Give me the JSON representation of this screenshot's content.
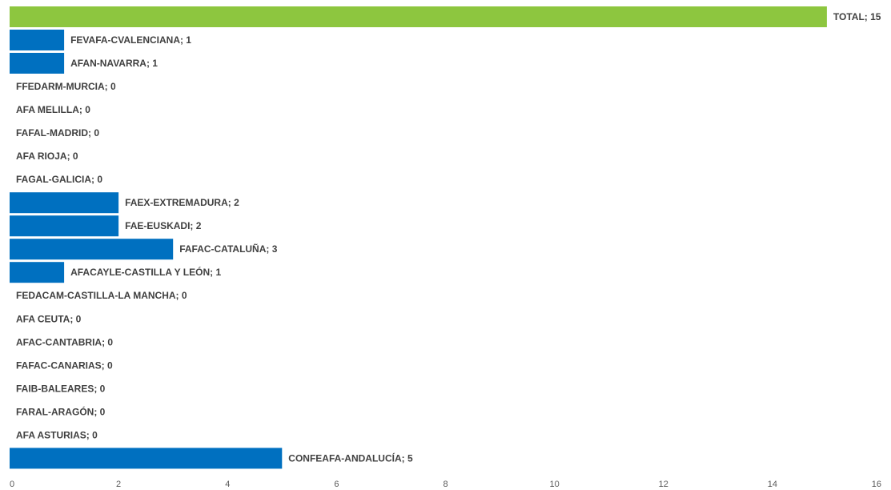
{
  "chart_data": {
    "type": "bar",
    "orientation": "horizontal",
    "categories": [
      "TOTAL",
      "FEVAFA-CVALENCIANA",
      "AFAN-NAVARRA",
      "FFEDARM-MURCIA",
      "AFA MELILLA",
      "FAFAL-MADRID",
      "AFA RIOJA",
      "FAGAL-GALICIA",
      "FAEX-EXTREMADURA",
      "FAE-EUSKADI",
      "FAFAC-CATALUÑA",
      "AFACAYLE-CASTILLA Y LEÓN",
      "FEDACAM-CASTILLA-LA MANCHA",
      "AFA CEUTA",
      "AFAC-CANTABRIA",
      "FAFAC-CANARIAS",
      "FAIB-BALEARES",
      "FARAL-ARAGÓN",
      "AFA ASTURIAS",
      "CONFEAFA-ANDALUCÍA"
    ],
    "values": [
      15,
      1,
      1,
      0,
      0,
      0,
      0,
      0,
      2,
      2,
      3,
      1,
      0,
      0,
      0,
      0,
      0,
      0,
      0,
      5
    ],
    "data_labels": [
      "TOTAL; 15",
      "FEVAFA-CVALENCIANA; 1",
      "AFAN-NAVARRA; 1",
      "FFEDARM-MURCIA; 0",
      "AFA MELILLA; 0",
      "FAFAL-MADRID; 0",
      "AFA RIOJA; 0",
      "FAGAL-GALICIA; 0",
      "FAEX-EXTREMADURA; 2",
      "FAE-EUSKADI; 2",
      "FAFAC-CATALUÑA; 3",
      "AFACAYLE-CASTILLA Y LEÓN; 1",
      "FEDACAM-CASTILLA-LA MANCHA; 0",
      "AFA CEUTA; 0",
      "AFAC-CANTABRIA; 0",
      "FAFAC-CANARIAS; 0",
      "FAIB-BALEARES; 0",
      "FARAL-ARAGÓN; 0",
      "AFA ASTURIAS; 0",
      "CONFEAFA-ANDALUCÍA; 5"
    ],
    "xlim": [
      0,
      16
    ],
    "xticks": [
      "0",
      "2",
      "4",
      "6",
      "8",
      "10",
      "12",
      "14",
      "16"
    ],
    "grid": false,
    "legend": "none",
    "title": "",
    "xlabel": "",
    "ylabel": "",
    "colors": {
      "default_bar": "#0070c0",
      "highlight_bar": "#8dc63f",
      "label_text": "#404040",
      "tick_text": "#595959"
    },
    "highlight_index": 0
  }
}
